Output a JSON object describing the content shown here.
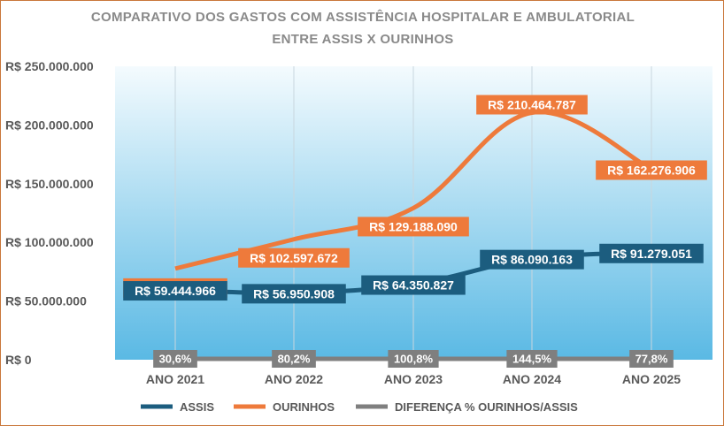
{
  "title": {
    "line1": "COMPARATIVO DOS GASTOS COM ASSISTÊNCIA HOSPITALAR E AMBULATORIAL",
    "line2": "ENTRE ASSIS X OURINHOS"
  },
  "colors": {
    "assis": "#1c5d7f",
    "ourinhos": "#ee7a3b",
    "diferenca": "#7f7f7f",
    "title": "#8a8a8a",
    "axis_text": "#595959",
    "plot_top": "#f4fbfe",
    "plot_bottom": "#5ab9e4"
  },
  "chart_data": {
    "type": "line",
    "title": "COMPARATIVO DOS GASTOS COM ASSISTÊNCIA HOSPITALAR E AMBULATORIAL ENTRE ASSIS X OURINHOS",
    "xlabel": "",
    "ylabel": "",
    "categories": [
      "ANO 2021",
      "ANO 2022",
      "ANO 2023",
      "ANO 2024",
      "ANO 2025"
    ],
    "ylim": [
      0,
      250000000
    ],
    "yticks": [
      0,
      50000000,
      100000000,
      150000000,
      200000000,
      250000000
    ],
    "ytick_labels": [
      "R$ 0",
      "R$ 50.000.000",
      "R$ 100.000.000",
      "R$ 150.000.000",
      "R$ 200.000.000",
      "R$ 250.000.000"
    ],
    "grid": "vertical",
    "legend_position": "bottom",
    "series": [
      {
        "name": "ASSIS",
        "values": [
          59444966,
          56950908,
          64350827,
          86090163,
          91279051
        ],
        "labels": [
          "R$ 59.444.966",
          "R$ 56.950.908",
          "R$ 64.350.827",
          "R$ 86.090.163",
          "R$ 91.279.051"
        ]
      },
      {
        "name": "OURINHOS",
        "values": [
          77651466,
          102597672,
          129188090,
          210464787,
          162276906
        ],
        "labels": [
          "R$ 77.651.466",
          "R$ 102.597.672",
          "R$ 129.188.090",
          "R$ 210.464.787",
          "R$ 162.276.906"
        ]
      },
      {
        "name": "DIFERENÇA % OURINHOS/ASSIS",
        "values": [
          30.6,
          80.2,
          100.8,
          144.5,
          77.8
        ],
        "labels": [
          "30,6%",
          "80,2%",
          "100,8%",
          "144,5%",
          "77,8%"
        ]
      }
    ]
  }
}
